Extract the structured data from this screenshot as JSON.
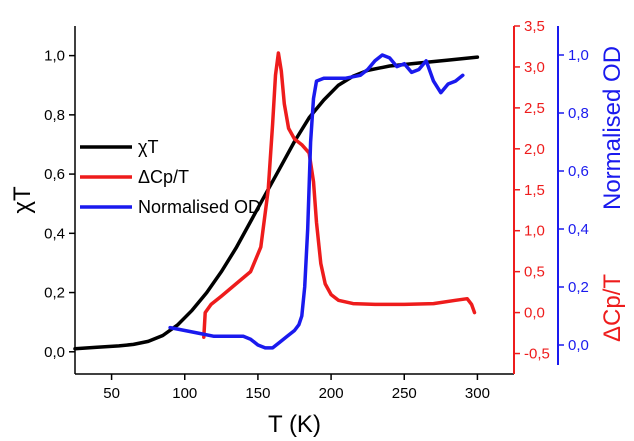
{
  "chart_data": {
    "type": "line",
    "x_axis": {
      "label": "T (K)",
      "range": [
        25,
        325
      ],
      "ticks": [
        50,
        100,
        150,
        200,
        250,
        300
      ],
      "tick_labels": [
        "50",
        "100",
        "150",
        "200",
        "250",
        "300"
      ]
    },
    "y_axes": [
      {
        "id": "chiT",
        "side": "left",
        "label": "χT",
        "color": "#000000",
        "range": [
          -0.075,
          1.1
        ],
        "ticks": [
          0.0,
          0.2,
          0.4,
          0.6,
          0.8,
          1.0
        ],
        "tick_labels": [
          "0,0",
          "0,2",
          "0,4",
          "0,6",
          "0,8",
          "1,0"
        ]
      },
      {
        "id": "dcp",
        "side": "right",
        "label": "ΔCp/T",
        "color": "#ee1c1c",
        "range": [
          -0.75,
          3.5
        ],
        "ticks": [
          -0.5,
          0.0,
          0.5,
          1.0,
          1.5,
          2.0,
          2.5,
          3.0,
          3.5
        ],
        "tick_labels": [
          "-0,5",
          "0,0",
          "0,5",
          "1,0",
          "1,5",
          "2,0",
          "2,5",
          "3,0",
          "3,5"
        ]
      },
      {
        "id": "od",
        "side": "right",
        "label": "Normalised OD",
        "color": "#1a1aee",
        "range": [
          -0.1,
          1.1
        ],
        "ticks": [
          0.0,
          0.2,
          0.4,
          0.6,
          0.8,
          1.0
        ],
        "tick_labels": [
          "0,0",
          "0,2",
          "0,4",
          "0,6",
          "0,8",
          "1,0"
        ]
      }
    ],
    "legend": {
      "position": "middle-left",
      "entries": [
        "χT",
        "ΔCp/T",
        "Normalised OD"
      ]
    },
    "series": [
      {
        "name": "χT",
        "axis": "chiT",
        "color": "#000000",
        "x": [
          25,
          40,
          55,
          65,
          75,
          85,
          95,
          105,
          115,
          125,
          135,
          145,
          155,
          165,
          175,
          185,
          195,
          205,
          215,
          225,
          240,
          260,
          280,
          300
        ],
        "y": [
          0.01,
          0.015,
          0.02,
          0.025,
          0.035,
          0.055,
          0.09,
          0.14,
          0.2,
          0.27,
          0.35,
          0.44,
          0.53,
          0.62,
          0.71,
          0.79,
          0.85,
          0.9,
          0.93,
          0.95,
          0.965,
          0.975,
          0.985,
          0.995
        ]
      },
      {
        "name": "ΔCp/T",
        "axis": "dcp",
        "color": "#ee1c1c",
        "x": [
          113,
          114,
          118,
          125,
          135,
          145,
          152,
          157,
          160,
          162,
          164,
          166,
          168,
          171,
          175,
          180,
          185,
          188,
          190,
          193,
          196,
          200,
          205,
          215,
          230,
          250,
          270,
          285,
          293,
          296,
          298
        ],
        "y": [
          -0.3,
          0.0,
          0.1,
          0.2,
          0.35,
          0.5,
          0.8,
          1.5,
          2.3,
          2.9,
          3.17,
          2.95,
          2.55,
          2.25,
          2.12,
          2.05,
          1.95,
          1.6,
          1.1,
          0.6,
          0.35,
          0.22,
          0.15,
          0.11,
          0.1,
          0.1,
          0.11,
          0.15,
          0.17,
          0.1,
          0.0
        ]
      },
      {
        "name": "Normalised OD",
        "axis": "od",
        "color": "#1a1aee",
        "x": [
          90,
          100,
          110,
          120,
          130,
          140,
          145,
          150,
          155,
          160,
          165,
          170,
          175,
          178,
          180,
          182,
          184,
          186,
          188,
          190,
          195,
          200,
          210,
          220,
          225,
          230,
          235,
          240,
          245,
          250,
          255,
          260,
          265,
          270,
          275,
          280,
          285,
          290
        ],
        "y": [
          0.06,
          0.05,
          0.04,
          0.03,
          0.03,
          0.03,
          0.02,
          0.0,
          -0.01,
          -0.01,
          0.01,
          0.03,
          0.05,
          0.07,
          0.1,
          0.2,
          0.4,
          0.7,
          0.85,
          0.91,
          0.92,
          0.92,
          0.92,
          0.93,
          0.95,
          0.98,
          1.0,
          0.99,
          0.96,
          0.97,
          0.94,
          0.95,
          0.98,
          0.91,
          0.87,
          0.9,
          0.91,
          0.93
        ]
      }
    ]
  }
}
